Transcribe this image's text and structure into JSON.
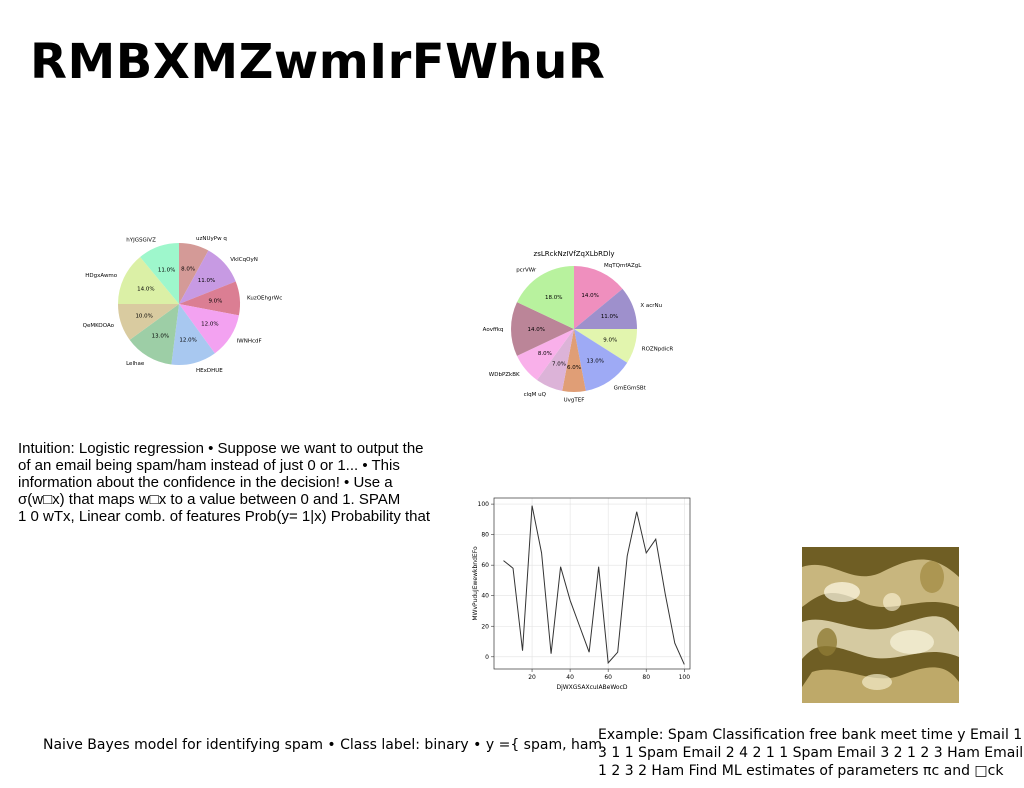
{
  "slide": {
    "title": "RMBXMZwmIrFWhuR",
    "body_lines": [
      "Intuition: Logistic regression • Suppose we want to output the",
      "of an email being spam/ham instead of just 0 or 1... • This",
      "information about the confidence in the decision! • Use a",
      "σ(w□x) that maps w□x to a value between 0 and 1. SPAM",
      "1 0 wTx, Linear comb. of features Prob(y= 1|x) Probability that"
    ],
    "bottom_left": "Naive Bayes model for identifying spam • Class label: binary • y ={ spam, ham",
    "bottom_right_lines": [
      "Example: Spam Classification free bank meet time y Email 1",
      "3 1 1 Spam Email 2 4 2 1 1 Spam Email 3 2 1 2 3 Ham Email",
      "1 2 3 2 Ham Find ML estimates of parameters πc and □ck"
    ],
    "photo_icon": "water-texture-photo"
  },
  "chart_data": [
    {
      "type": "pie",
      "title": "",
      "slices": [
        {
          "label": "uzNUyPw q",
          "value": 8.0,
          "color": "#d49a97"
        },
        {
          "label": "VkICqOyN",
          "value": 11.0,
          "color": "#c79ae3"
        },
        {
          "label": "KuzOEhgrWc",
          "value": 9.0,
          "color": "#db7e93"
        },
        {
          "label": "IWNHcdF",
          "value": 12.0,
          "color": "#f3a2f1"
        },
        {
          "label": "HExDHUE",
          "value": 12.0,
          "color": "#a8c8f0"
        },
        {
          "label": "Lelhae",
          "value": 13.0,
          "color": "#9dcea6"
        },
        {
          "label": "QeMKOOAo",
          "value": 10.0,
          "color": "#d9cba0"
        },
        {
          "label": "HDgxAwmo",
          "value": 14.0,
          "color": "#dbf0a6"
        },
        {
          "label": "hYJGSGiVZ",
          "value": 11.0,
          "color": "#9ef7cc"
        }
      ]
    },
    {
      "type": "pie",
      "title": "zsLRckNzIVfZqXLbRDly",
      "slices": [
        {
          "label": "MqTQmfAZgL",
          "value": 14.0,
          "color": "#ef8fbe"
        },
        {
          "label": "X acrNu",
          "value": 11.0,
          "color": "#9e90cc"
        },
        {
          "label": "ROZNpdicR",
          "value": 9.0,
          "color": "#e2f5ae"
        },
        {
          "label": "GmEGmSBt",
          "value": 13.0,
          "color": "#9eaaf5"
        },
        {
          "label": "UvgTEF",
          "value": 6.0,
          "color": "#e09e76"
        },
        {
          "label": "clqM uQ",
          "value": 7.0,
          "color": "#dcb3d8"
        },
        {
          "label": "WDbPZkBK",
          "value": 8.0,
          "color": "#f9b0ea"
        },
        {
          "label": "Aovffkq",
          "value": 14.0,
          "color": "#bb8598"
        },
        {
          "label": "pcrVWr",
          "value": 18.0,
          "color": "#b8f29e"
        }
      ]
    },
    {
      "type": "line",
      "title": "",
      "xlabel": "DjWXGSAXcuIABeWocD",
      "ylabel": "MWvPuduJEwewkbndEFo",
      "xlim": [
        0,
        103
      ],
      "ylim": [
        -8,
        104
      ],
      "xticks": [
        20,
        40,
        60,
        80,
        100
      ],
      "yticks": [
        0,
        20,
        40,
        60,
        80,
        100
      ],
      "grid": true,
      "series": [
        {
          "color": "#333333",
          "x": [
            5,
            10,
            15,
            20,
            25,
            30,
            35,
            40,
            45,
            50,
            55,
            60,
            65,
            70,
            75,
            80,
            85,
            90,
            95,
            100
          ],
          "y": [
            63,
            58,
            4,
            99,
            68,
            2,
            59,
            37,
            20,
            3,
            59,
            -4,
            3,
            66,
            95,
            68,
            77,
            41,
            9,
            -5
          ]
        }
      ]
    }
  ]
}
